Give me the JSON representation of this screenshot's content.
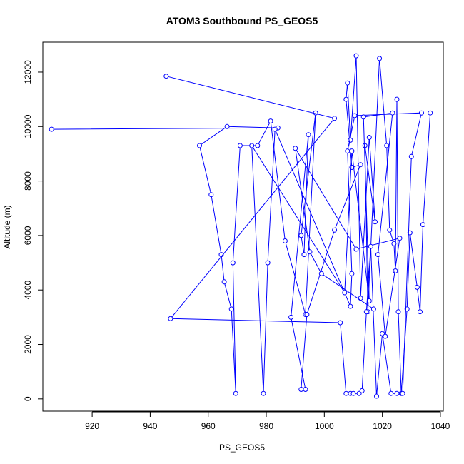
{
  "chart_data": {
    "type": "line",
    "title": "ATOM3 Southbound PS_GEOS5",
    "xlabel": "PS_GEOS5",
    "ylabel": "Altitude (m)",
    "xlim": [
      903,
      1041
    ],
    "ylim": [
      -450,
      13100
    ],
    "xticks": [
      920,
      940,
      960,
      980,
      1000,
      1020,
      1040
    ],
    "yticks": [
      0,
      2000,
      4000,
      6000,
      8000,
      10000,
      12000
    ],
    "grid": false,
    "legend": "none",
    "colors": {
      "series": "#0000ff",
      "axes": "#000000"
    },
    "series": [
      {
        "marker": "open-circle",
        "x": [
          906,
          984,
          966.5,
          957,
          961,
          964.5,
          965.5,
          968,
          969.5,
          968.5,
          971,
          977,
          981.5,
          986.5,
          993.5,
          997,
          992,
          993,
          994.5,
          988.5,
          993.5,
          992,
          994,
          1003.5,
          1012.5,
          1009.5,
          1007.5,
          1008,
          1009,
          1011,
          1012.5,
          1015.5,
          1017.5,
          1014,
          1015,
          1019,
          1021.5,
          1022.5,
          1024,
          1024.5,
          1025,
          1025.5,
          1026.5,
          1028.5,
          1029.5,
          1032,
          1033,
          1034,
          1036.5
        ],
        "y": [
          9900,
          9950,
          10000,
          9300,
          7500,
          5300,
          4300,
          3300,
          200,
          5000,
          9300,
          9300,
          10200,
          5800,
          3100,
          10500,
          6000,
          5300,
          9700,
          3000,
          350,
          350,
          3100,
          6200,
          8600,
          8500,
          11000,
          11600,
          9500,
          12600,
          3700,
          9600,
          6500,
          9300,
          3200,
          12500,
          9300,
          6200,
          5700,
          4700,
          11000,
          3200,
          200,
          3300,
          6100,
          4100,
          3200,
          6400,
          10500
        ]
      },
      {
        "marker": "open-circle",
        "x": [
          945.5,
          1003.5,
          947,
          1005.5,
          1007.5,
          1009,
          1010,
          1012,
          1013,
          1014.5,
          1016,
          1018,
          1020,
          1023,
          1025,
          1027,
          1030,
          1033.5,
          1010.5,
          1008,
          1009.5,
          1009,
          983,
          980.5,
          979,
          975,
          1007,
          1009.5,
          1015.5,
          1013.5,
          1023.5,
          1018.5,
          1021,
          1026,
          1011,
          990,
          995,
          999,
          1017
        ],
        "y": [
          11850,
          10300,
          2950,
          2800,
          200,
          200,
          200,
          200,
          300,
          3200,
          5600,
          100,
          2400,
          200,
          200,
          200,
          8900,
          10500,
          10400,
          9100,
          4600,
          3400,
          9900,
          5000,
          200,
          9300,
          3900,
          9100,
          3600,
          10350,
          10500,
          5300,
          2300,
          5900,
          5500,
          9200,
          5400,
          4600,
          3300
        ]
      }
    ]
  }
}
